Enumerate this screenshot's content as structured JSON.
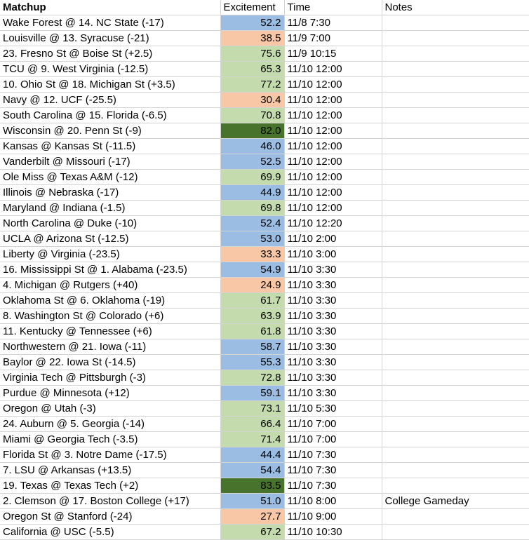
{
  "headers": {
    "matchup": "Matchup",
    "excitement": "Excitement",
    "time": "Time",
    "notes": "Notes"
  },
  "colors": {
    "blue": "#9cbde3",
    "orange": "#f8c8a6",
    "green": "#c4dcad",
    "dark_green": "#48732c"
  },
  "rows": [
    {
      "matchup": "Wake Forest @ 14. NC State (-17)",
      "excitement": "52.2",
      "time": "11/8 7:30",
      "notes": "",
      "fill": "blue"
    },
    {
      "matchup": "Louisville @ 13. Syracuse (-21)",
      "excitement": "38.5",
      "time": "11/9 7:00",
      "notes": "",
      "fill": "orange"
    },
    {
      "matchup": "23. Fresno St @ Boise St (+2.5)",
      "excitement": "75.6",
      "time": "11/9 10:15",
      "notes": "",
      "fill": "green"
    },
    {
      "matchup": "TCU @ 9. West Virginia (-12.5)",
      "excitement": "65.3",
      "time": "11/10 12:00",
      "notes": "",
      "fill": "green"
    },
    {
      "matchup": "10. Ohio St @ 18. Michigan St (+3.5)",
      "excitement": "77.2",
      "time": "11/10 12:00",
      "notes": "",
      "fill": "green"
    },
    {
      "matchup": "Navy @ 12. UCF (-25.5)",
      "excitement": "30.4",
      "time": "11/10 12:00",
      "notes": "",
      "fill": "orange"
    },
    {
      "matchup": "South Carolina @ 15. Florida (-6.5)",
      "excitement": "70.8",
      "time": "11/10 12:00",
      "notes": "",
      "fill": "green"
    },
    {
      "matchup": "Wisconsin @ 20. Penn St (-9)",
      "excitement": "82.0",
      "time": "11/10 12:00",
      "notes": "",
      "fill": "dark_green"
    },
    {
      "matchup": "Kansas @ Kansas St (-11.5)",
      "excitement": "46.0",
      "time": "11/10 12:00",
      "notes": "",
      "fill": "blue"
    },
    {
      "matchup": "Vanderbilt @ Missouri (-17)",
      "excitement": "52.5",
      "time": "11/10 12:00",
      "notes": "",
      "fill": "blue"
    },
    {
      "matchup": "Ole Miss @ Texas A&M (-12)",
      "excitement": "69.9",
      "time": "11/10 12:00",
      "notes": "",
      "fill": "green"
    },
    {
      "matchup": "Illinois @ Nebraska (-17)",
      "excitement": "44.9",
      "time": "11/10 12:00",
      "notes": "",
      "fill": "blue"
    },
    {
      "matchup": "Maryland @ Indiana (-1.5)",
      "excitement": "69.8",
      "time": "11/10 12:00",
      "notes": "",
      "fill": "green"
    },
    {
      "matchup": "North Carolina @ Duke (-10)",
      "excitement": "52.4",
      "time": "11/10 12:20",
      "notes": "",
      "fill": "blue"
    },
    {
      "matchup": "UCLA @ Arizona St (-12.5)",
      "excitement": "53.0",
      "time": "11/10 2:00",
      "notes": "",
      "fill": "blue"
    },
    {
      "matchup": "Liberty @ Virginia (-23.5)",
      "excitement": "33.3",
      "time": "11/10 3:00",
      "notes": "",
      "fill": "orange"
    },
    {
      "matchup": "16. Mississippi St @ 1. Alabama (-23.5)",
      "excitement": "54.9",
      "time": "11/10 3:30",
      "notes": "",
      "fill": "blue"
    },
    {
      "matchup": "4. Michigan @ Rutgers (+40)",
      "excitement": "24.9",
      "time": "11/10 3:30",
      "notes": "",
      "fill": "orange"
    },
    {
      "matchup": "Oklahoma St @ 6. Oklahoma (-19)",
      "excitement": "61.7",
      "time": "11/10 3:30",
      "notes": "",
      "fill": "green"
    },
    {
      "matchup": "8. Washington St @ Colorado (+6)",
      "excitement": "63.9",
      "time": "11/10 3:30",
      "notes": "",
      "fill": "green"
    },
    {
      "matchup": "11. Kentucky @ Tennessee (+6)",
      "excitement": "61.8",
      "time": "11/10 3:30",
      "notes": "",
      "fill": "green"
    },
    {
      "matchup": "Northwestern @ 21. Iowa (-11)",
      "excitement": "58.7",
      "time": "11/10 3:30",
      "notes": "",
      "fill": "blue"
    },
    {
      "matchup": "Baylor @ 22. Iowa St (-14.5)",
      "excitement": "55.3",
      "time": "11/10 3:30",
      "notes": "",
      "fill": "blue"
    },
    {
      "matchup": "Virginia Tech @ Pittsburgh (-3)",
      "excitement": "72.8",
      "time": "11/10 3:30",
      "notes": "",
      "fill": "green"
    },
    {
      "matchup": "Purdue @ Minnesota (+12)",
      "excitement": "59.1",
      "time": "11/10 3:30",
      "notes": "",
      "fill": "blue"
    },
    {
      "matchup": "Oregon @ Utah (-3)",
      "excitement": "73.1",
      "time": "11/10 5:30",
      "notes": "",
      "fill": "green"
    },
    {
      "matchup": "24. Auburn @ 5. Georgia (-14)",
      "excitement": "66.4",
      "time": "11/10 7:00",
      "notes": "",
      "fill": "green"
    },
    {
      "matchup": "Miami @ Georgia Tech (-3.5)",
      "excitement": "71.4",
      "time": "11/10 7:00",
      "notes": "",
      "fill": "green"
    },
    {
      "matchup": "Florida St @ 3. Notre Dame (-17.5)",
      "excitement": "44.4",
      "time": "11/10 7:30",
      "notes": "",
      "fill": "blue"
    },
    {
      "matchup": "7. LSU @ Arkansas (+13.5)",
      "excitement": "54.4",
      "time": "11/10 7:30",
      "notes": "",
      "fill": "blue"
    },
    {
      "matchup": "19. Texas @ Texas Tech (+2)",
      "excitement": "83.5",
      "time": "11/10 7:30",
      "notes": "",
      "fill": "dark_green"
    },
    {
      "matchup": "2. Clemson @ 17. Boston College (+17)",
      "excitement": "51.0",
      "time": "11/10 8:00",
      "notes": "College Gameday",
      "fill": "blue"
    },
    {
      "matchup": "Oregon St @ Stanford (-24)",
      "excitement": "27.7",
      "time": "11/10 9:00",
      "notes": "",
      "fill": "orange"
    },
    {
      "matchup": "California @ USC (-5.5)",
      "excitement": "67.2",
      "time": "11/10 10:30",
      "notes": "",
      "fill": "green"
    }
  ]
}
